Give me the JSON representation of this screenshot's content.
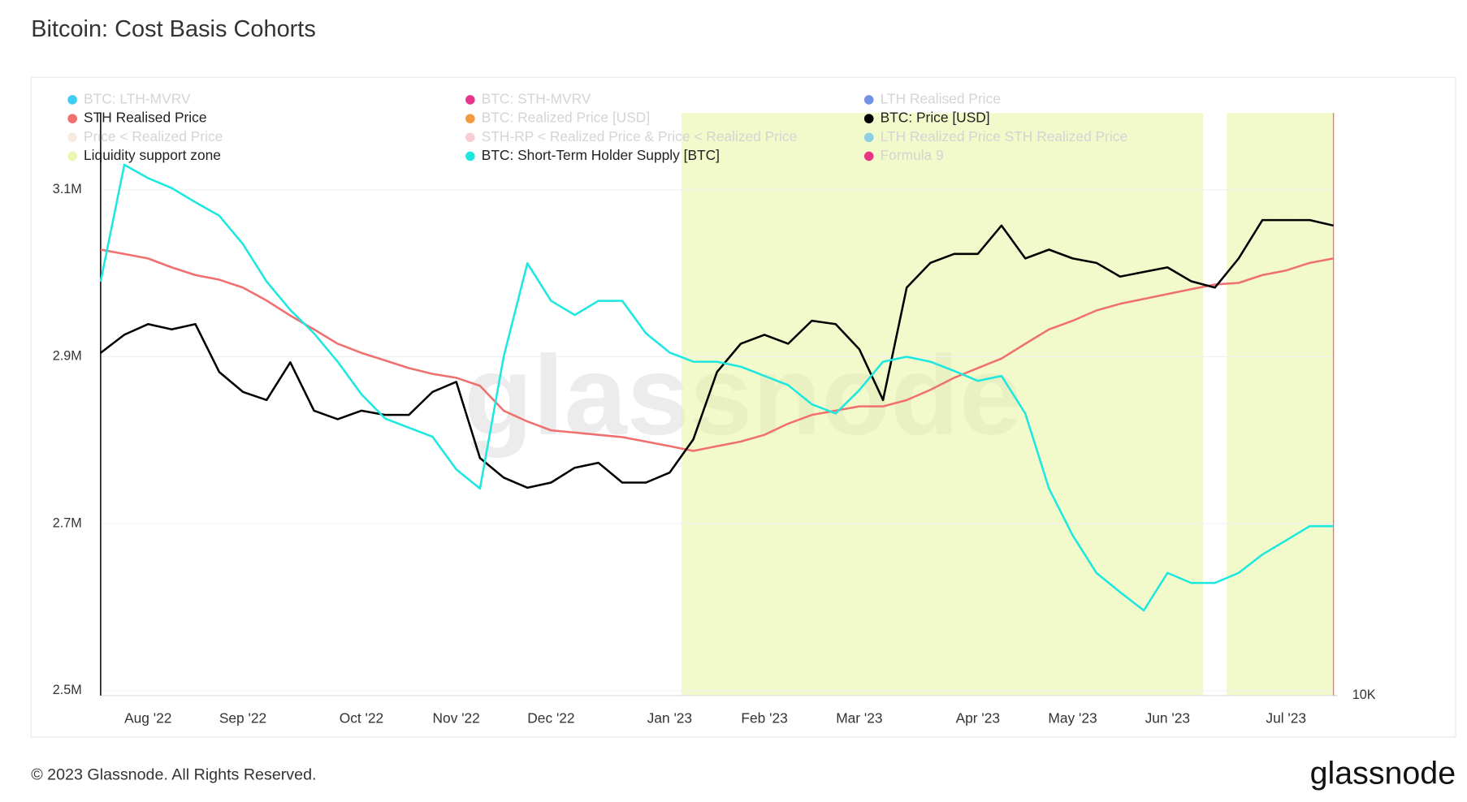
{
  "chart_data": {
    "type": "line",
    "title": "Bitcoin: Cost Basis Cohorts",
    "footer": "© 2023 Glassnode. All Rights Reserved.",
    "brand": "glassnode",
    "categories": [
      null,
      null,
      "Aug '22",
      null,
      null,
      null,
      "Sep '22",
      null,
      null,
      null,
      null,
      "Oct '22",
      null,
      null,
      null,
      "Nov '22",
      null,
      null,
      null,
      "Dec '22",
      null,
      null,
      null,
      null,
      "Jan '23",
      null,
      null,
      null,
      "Feb '23",
      null,
      null,
      null,
      "Mar '23",
      null,
      null,
      null,
      null,
      "Apr '23",
      null,
      null,
      null,
      "May '23",
      null,
      null,
      null,
      "Jun '23",
      null,
      null,
      null,
      null,
      "Jul '23",
      null,
      null
    ],
    "ylim": [
      2494000,
      3192000
    ],
    "yticks": [
      {
        "value": 2500000,
        "label": "2.5M"
      },
      {
        "value": 2700000,
        "label": "2.7M"
      },
      {
        "value": 2900000,
        "label": "2.9M"
      },
      {
        "value": 3100000,
        "label": "3.1M"
      }
    ],
    "y2lim": [
      10000,
      40000
    ],
    "y2ticks": [
      {
        "value": 10000,
        "label": "10K"
      }
    ],
    "y2log": true,
    "grid": true,
    "zone_color": "#e8f5a0",
    "series": [
      {
        "name": "BTC: LTH-MVRV",
        "color": "#1cc6f0",
        "hidden": true
      },
      {
        "name": "BTC: STH-MVRV",
        "color": "#e0127a",
        "hidden": true
      },
      {
        "name": "LTH Realised Price",
        "color": "#5b7ee0",
        "hidden": true
      },
      {
        "name": "STH Realised Price",
        "color": "#f07070",
        "axis": "y2",
        "values": [
          28900,
          28600,
          28300,
          27700,
          27200,
          26900,
          26400,
          25600,
          24700,
          23900,
          23100,
          22600,
          22200,
          21800,
          21500,
          21300,
          20900,
          19700,
          19200,
          18800,
          18700,
          18600,
          18500,
          18300,
          18100,
          17900,
          18100,
          18300,
          18600,
          19100,
          19500,
          19700,
          19900,
          19900,
          20200,
          20700,
          21300,
          21800,
          22300,
          23100,
          23900,
          24400,
          25000,
          25400,
          25700,
          26000,
          26300,
          26600,
          26700,
          27200,
          27500,
          28000,
          28300
        ]
      },
      {
        "name": "BTC: Realized Price [USD]",
        "color": "#f08a1e",
        "hidden": true
      },
      {
        "name": "BTC: Price [USD]",
        "color": "#000000",
        "axis": "y2",
        "values": [
          22600,
          23600,
          24200,
          23900,
          24200,
          21600,
          20600,
          20200,
          22100,
          19700,
          19300,
          19700,
          19500,
          19500,
          20600,
          21100,
          17600,
          16800,
          16400,
          16600,
          17200,
          17400,
          16600,
          16600,
          17000,
          18400,
          21600,
          23100,
          23600,
          23100,
          24400,
          24200,
          22800,
          20200,
          26400,
          28000,
          28600,
          28600,
          30600,
          28300,
          28900,
          28300,
          28000,
          27100,
          27400,
          27700,
          26800,
          26400,
          28300,
          31000,
          31000,
          31000,
          30600
        ]
      },
      {
        "name": "Price < Realized Price",
        "color": "#f5e8d8",
        "hidden": true
      },
      {
        "name": "STH-RP < Realized Price & Price < Realized Price",
        "color": "#f5c6cc",
        "hidden": true
      },
      {
        "name": "LTH Realized Price STH Realized Price",
        "color": "#7fc6e8",
        "hidden": true
      },
      {
        "name": "Liquidity support zone",
        "color": "#eef5b0",
        "zone": true
      },
      {
        "name": "BTC: Short-Term Holder Supply [BTC]",
        "color": "#1de8e0",
        "axis": "y",
        "values": [
          2990000,
          3130000,
          3114000,
          3102000,
          3085000,
          3069000,
          3035000,
          2990000,
          2956000,
          2928000,
          2894000,
          2855000,
          2826000,
          2815000,
          2804000,
          2765000,
          2742000,
          2900000,
          3012000,
          2967000,
          2950000,
          2967000,
          2967000,
          2928000,
          2905000,
          2894000,
          2894000,
          2888000,
          2877000,
          2866000,
          2843000,
          2832000,
          2860000,
          2894000,
          2900000,
          2894000,
          2883000,
          2871000,
          2877000,
          2832000,
          2742000,
          2686000,
          2641000,
          2618000,
          2596000,
          2641000,
          2629000,
          2629000,
          2641000,
          2663000,
          2680000,
          2697000,
          2697000
        ]
      },
      {
        "name": "Formula 9",
        "color": "#e8127a",
        "hidden": true
      }
    ]
  }
}
